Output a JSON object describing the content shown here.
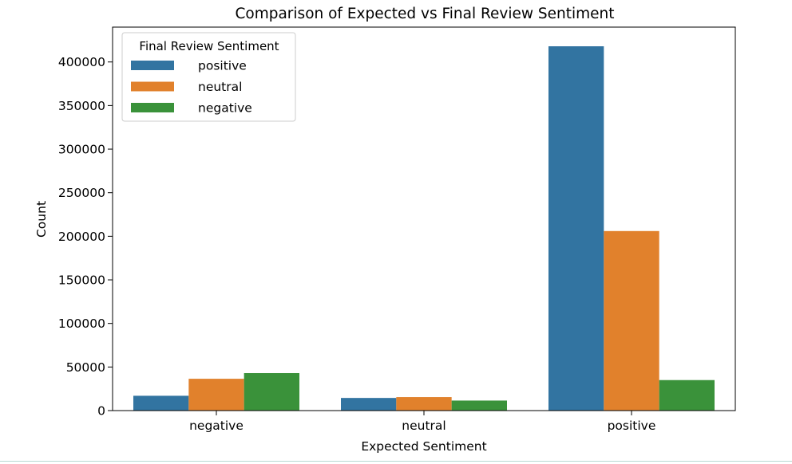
{
  "chart_data": {
    "type": "bar",
    "title": "Comparison of Expected vs Final Review Sentiment",
    "xlabel": "Expected Sentiment",
    "ylabel": "Count",
    "categories": [
      "negative",
      "neutral",
      "positive"
    ],
    "series": [
      {
        "name": "positive",
        "color": "#3274a1",
        "values": [
          17000,
          14500,
          418000
        ]
      },
      {
        "name": "neutral",
        "color": "#e1812c",
        "values": [
          36500,
          15500,
          206000
        ]
      },
      {
        "name": "negative",
        "color": "#3a923a",
        "values": [
          43000,
          11500,
          35000
        ]
      }
    ],
    "ylim": [
      0,
      440000
    ],
    "yticks": [
      0,
      50000,
      100000,
      150000,
      200000,
      250000,
      300000,
      350000,
      400000
    ],
    "grid": false,
    "legend": {
      "title": "Final Review Sentiment",
      "placement": "top-left"
    }
  }
}
